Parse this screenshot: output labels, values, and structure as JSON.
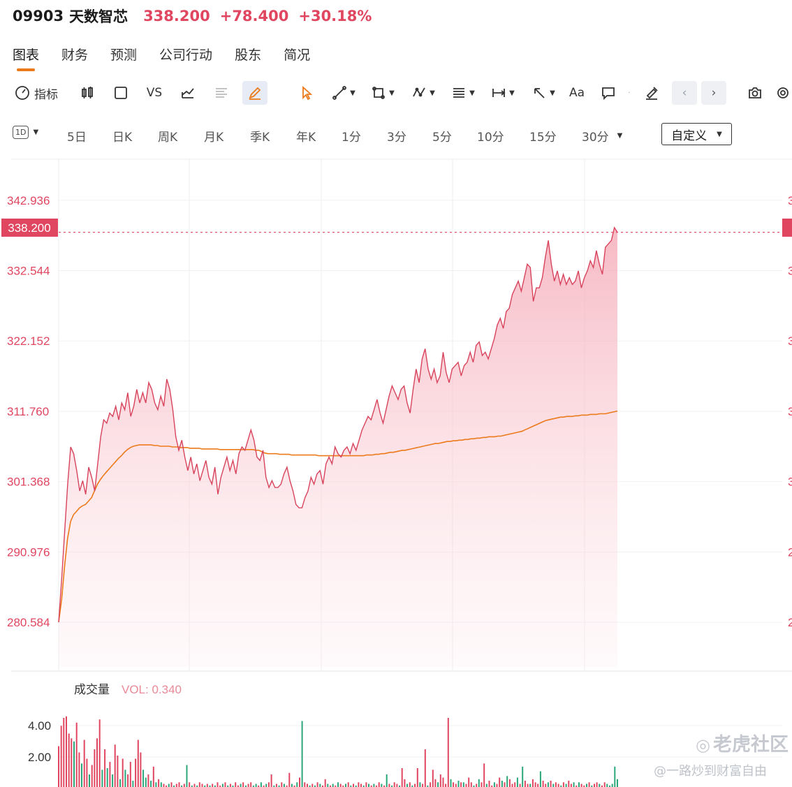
{
  "header": {
    "symbol": "09903",
    "name": "天数智芯",
    "price": "338.200",
    "change": "+78.400",
    "change_pct": "+30.18%"
  },
  "tabs": [
    "图表",
    "财务",
    "预测",
    "公司行动",
    "股东",
    "简况"
  ],
  "active_tab": "图表",
  "toolbar": {
    "indicator_label": "指标",
    "vs_label": "VS",
    "text_tool_label": "Aa"
  },
  "timeframes": {
    "period_badge": "1D",
    "items": [
      "5日",
      "日K",
      "周K",
      "月K",
      "季K",
      "年K",
      "1分",
      "3分",
      "5分",
      "10分",
      "15分",
      "30分"
    ],
    "custom_label": "自定义"
  },
  "volume_panel": {
    "title": "成交量",
    "vol_label": "VOL: 0.340"
  },
  "watermark": {
    "brand": "老虎社区",
    "author": "@一路炒到财富自由"
  },
  "colors": {
    "up": "#e04660",
    "down": "#2aa779",
    "avg_line": "#ec7a1b",
    "accent_underline": "#ec7a1b"
  },
  "chart_data": {
    "type": "area",
    "y_ticks": [
      "342.936",
      "332.544",
      "322.152",
      "311.760",
      "301.368",
      "290.976",
      "280.584"
    ],
    "last_price_label": "338.200",
    "ylim": [
      274.0,
      349.0
    ],
    "series": [
      {
        "values": [
          280.6,
          287.0,
          294.0,
          301.0,
          306.5,
          305.5,
          303.0,
          300.0,
          301.5,
          299.5,
          303.5,
          302.0,
          300.0,
          304.0,
          308.0,
          310.5,
          310.0,
          311.5,
          311.0,
          312.5,
          310.5,
          313.0,
          312.0,
          314.5,
          311.0,
          312.5,
          315.0,
          313.0,
          314.5,
          313.0,
          316.0,
          315.0,
          313.0,
          312.0,
          314.0,
          312.5,
          316.5,
          315.0,
          312.0,
          308.0,
          306.0,
          307.5,
          305.0,
          303.0,
          305.0,
          302.5,
          304.0,
          301.5,
          303.0,
          304.5,
          302.0,
          301.0,
          303.5,
          299.5,
          302.0,
          303.5,
          305.0,
          303.0,
          304.5,
          302.5,
          305.5,
          306.5,
          306.0,
          307.5,
          309.0,
          307.5,
          305.0,
          304.5,
          306.0,
          302.0,
          300.5,
          301.5,
          300.5,
          300.5,
          301.0,
          302.5,
          303.5,
          301.5,
          300.0,
          298.0,
          297.5,
          297.5,
          299.0,
          300.0,
          302.0,
          301.0,
          302.5,
          303.0,
          301.0,
          304.0,
          305.0,
          304.0,
          306.5,
          305.5,
          305.0,
          306.0,
          306.5,
          305.5,
          307.0,
          306.0,
          307.5,
          309.0,
          310.0,
          311.0,
          310.5,
          312.0,
          313.5,
          311.5,
          310.0,
          312.0,
          314.0,
          315.5,
          314.5,
          313.5,
          315.0,
          315.5,
          313.0,
          311.5,
          315.0,
          318.0,
          316.0,
          319.5,
          321.0,
          318.0,
          316.5,
          318.0,
          316.0,
          317.0,
          320.5,
          317.5,
          316.0,
          318.0,
          318.5,
          319.0,
          317.0,
          318.5,
          319.0,
          320.5,
          319.0,
          321.5,
          322.0,
          320.0,
          320.5,
          319.5,
          321.0,
          322.5,
          324.5,
          325.5,
          324.0,
          326.5,
          327.0,
          329.0,
          330.0,
          331.0,
          329.5,
          331.5,
          333.5,
          333.0,
          328.0,
          330.0,
          330.0,
          331.5,
          334.5,
          337.0,
          333.5,
          331.0,
          332.5,
          330.5,
          332.0,
          330.5,
          331.5,
          330.5,
          331.0,
          332.5,
          330.0,
          331.5,
          332.5,
          334.0,
          333.0,
          335.5,
          333.5,
          332.0,
          336.0,
          336.5,
          337.0,
          338.9,
          338.2
        ]
      },
      {
        "values": [
          280.6,
          284.0,
          289.0,
          293.0,
          295.5,
          296.5,
          297.0,
          297.5,
          297.8,
          298.0,
          298.5,
          299.0,
          300.0,
          301.0,
          301.7,
          302.3,
          302.8,
          303.3,
          303.8,
          304.3,
          304.8,
          305.2,
          305.7,
          306.1,
          306.4,
          306.6,
          306.7,
          306.8,
          306.8,
          306.8,
          306.8,
          306.8,
          306.7,
          306.7,
          306.6,
          306.6,
          306.6,
          306.6,
          306.5,
          306.5,
          306.5,
          306.4,
          306.4,
          306.4,
          306.3,
          306.3,
          306.3,
          306.3,
          306.2,
          306.2,
          306.2,
          306.2,
          306.2,
          306.2,
          306.1,
          306.1,
          306.1,
          306.1,
          306.1,
          306.1,
          306.1,
          306.1,
          306.1,
          306.1,
          306.1,
          306.1,
          306.0,
          306.0,
          305.8,
          305.6,
          305.5,
          305.5,
          305.5,
          305.5,
          305.4,
          305.4,
          305.4,
          305.4,
          305.3,
          305.3,
          305.3,
          305.3,
          305.3,
          305.3,
          305.3,
          305.3,
          305.3,
          305.2,
          305.2,
          305.2,
          305.2,
          305.2,
          305.2,
          305.2,
          305.2,
          305.2,
          305.2,
          305.2,
          305.2,
          305.2,
          305.2,
          305.2,
          305.2,
          305.3,
          305.3,
          305.3,
          305.4,
          305.4,
          305.5,
          305.5,
          305.6,
          305.7,
          305.7,
          305.8,
          305.9,
          306.0,
          306.0,
          306.1,
          306.2,
          306.3,
          306.4,
          306.5,
          306.6,
          306.7,
          306.8,
          306.9,
          307.0,
          307.0,
          307.1,
          307.2,
          307.3,
          307.3,
          307.4,
          307.4,
          307.5,
          307.5,
          307.6,
          307.6,
          307.7,
          307.7,
          307.8,
          307.8,
          307.9,
          307.9,
          308.0,
          308.0,
          308.0,
          308.1,
          308.1,
          308.2,
          308.3,
          308.4,
          308.5,
          308.6,
          308.7,
          308.8,
          309.0,
          309.2,
          309.4,
          309.6,
          309.8,
          310.0,
          310.2,
          310.4,
          310.5,
          310.6,
          310.7,
          310.8,
          310.9,
          310.9,
          311.0,
          311.0,
          311.0,
          311.1,
          311.1,
          311.2,
          311.2,
          311.2,
          311.3,
          311.3,
          311.3,
          311.4,
          311.4,
          311.4,
          311.5,
          311.6,
          311.7,
          311.8
        ]
      }
    ],
    "volume": {
      "y_ticks": [
        "4.00",
        "2.00"
      ],
      "ylim": [
        0,
        5.2
      ],
      "values": [
        2.6,
        3.9,
        4.4,
        4.5,
        3.4,
        3.1,
        2.9,
        4.1,
        2.2,
        1.5,
        3.0,
        1.8,
        0.8,
        1.4,
        2.4,
        3.1,
        4.3,
        1.1,
        2.4,
        1.2,
        1.6,
        0.8,
        2.7,
        2.0,
        0.5,
        1.8,
        1.1,
        0.8,
        1.6,
        0.4,
        1.8,
        3.0,
        2.2,
        1.1,
        0.6,
        0.8,
        0.4,
        1.3,
        0.3,
        0.5,
        0.3,
        0.2,
        0.1,
        0.2,
        0.3,
        0.1,
        0.2,
        0.3,
        0.1,
        0.2,
        1.4,
        0.3,
        0.1,
        0.2,
        0.1,
        0.3,
        0.2,
        0.1,
        0.2,
        0.1,
        0.2,
        0.1,
        0.3,
        0.1,
        0.2,
        0.3,
        0.1,
        0.2,
        0.1,
        0.3,
        0.1,
        0.2,
        0.3,
        0.1,
        0.2,
        0.3,
        0.1,
        0.2,
        0.1,
        0.3,
        0.1,
        0.2,
        0.3,
        0.8,
        0.1,
        0.2,
        0.1,
        0.3,
        0.2,
        0.1,
        0.9,
        0.2,
        0.1,
        0.3,
        0.6,
        4.2,
        0.3,
        0.2,
        0.1,
        0.2,
        0.1,
        0.3,
        0.2,
        0.1,
        0.5,
        0.2,
        0.1,
        0.2,
        0.1,
        0.3,
        0.2,
        0.1,
        0.2,
        0.3,
        0.1,
        0.2,
        0.1,
        0.3,
        0.2,
        0.1,
        0.3,
        0.2,
        0.1,
        0.2,
        0.1,
        0.3,
        0.2,
        0.1,
        0.8,
        0.2,
        0.1,
        0.3,
        0.2,
        0.1,
        1.2,
        0.5,
        0.2,
        0.3,
        0.1,
        0.2,
        1.2,
        0.3,
        0.2,
        2.4,
        0.1,
        0.3,
        1.1,
        0.5,
        0.3,
        0.8,
        0.6,
        0.2,
        4.4,
        0.5,
        0.3,
        0.2,
        0.4,
        0.3,
        0.3,
        0.2,
        0.6,
        0.3,
        0.1,
        0.2,
        0.5,
        0.3,
        1.5,
        0.2,
        0.4,
        0.1,
        0.3,
        0.2,
        0.6,
        0.4,
        0.3,
        0.7,
        0.5,
        0.2,
        0.3,
        0.6,
        0.2,
        1.3,
        0.4,
        0.2,
        0.2,
        0.5,
        0.3,
        0.2,
        1.0,
        0.4,
        0.2,
        0.3,
        0.4,
        0.2,
        0.3,
        0.2,
        0.1,
        0.3,
        0.2,
        0.4,
        0.2,
        0.3,
        0.1,
        0.3,
        0.2,
        0.1,
        0.2,
        0.3,
        0.1,
        0.2,
        0.3,
        0.2,
        0.1,
        0.3,
        0.2,
        0.1,
        0.2,
        1.3,
        0.5
      ],
      "up": [
        true,
        true,
        true,
        true,
        true,
        true,
        false,
        true,
        true,
        false,
        true,
        true,
        false,
        true,
        true,
        true,
        true,
        false,
        true,
        false,
        true,
        false,
        true,
        true,
        false,
        true,
        false,
        true,
        true,
        false,
        true,
        true,
        true,
        false,
        false,
        true,
        false,
        true,
        false,
        true,
        false,
        true,
        true,
        false,
        true,
        false,
        true,
        true,
        false,
        true,
        false,
        true,
        false,
        true,
        false,
        true,
        true,
        false,
        true,
        false,
        true,
        false,
        true,
        true,
        false,
        true,
        false,
        true,
        false,
        true,
        true,
        false,
        true,
        false,
        true,
        true,
        false,
        false,
        true,
        false,
        true,
        false,
        true,
        true,
        false,
        true,
        false,
        true,
        false,
        true,
        true,
        false,
        true,
        false,
        true,
        false,
        true,
        true,
        false,
        true,
        false,
        true,
        false,
        true,
        true,
        false,
        true,
        false,
        true,
        false,
        true,
        true,
        false,
        true,
        false,
        true,
        false,
        true,
        true,
        false,
        true,
        false,
        true,
        false,
        true,
        true,
        false,
        true,
        false,
        true,
        false,
        true,
        true,
        false,
        true,
        true,
        false,
        true,
        false,
        true,
        true,
        false,
        true,
        true,
        false,
        true,
        true,
        true,
        false,
        true,
        true,
        true,
        true,
        false,
        true,
        true,
        false,
        true,
        false,
        true,
        true,
        true,
        false,
        true,
        false,
        true,
        true,
        false,
        true,
        true,
        false,
        true,
        true,
        false,
        true,
        false,
        true,
        true,
        true,
        false,
        true,
        false,
        true,
        true,
        false,
        true,
        true,
        true,
        false,
        true,
        true,
        false,
        true,
        false,
        true,
        true,
        false,
        true,
        false,
        true,
        true,
        false,
        true,
        false,
        true,
        true,
        false,
        true,
        false,
        true,
        true,
        false,
        true,
        true,
        false
      ]
    }
  }
}
